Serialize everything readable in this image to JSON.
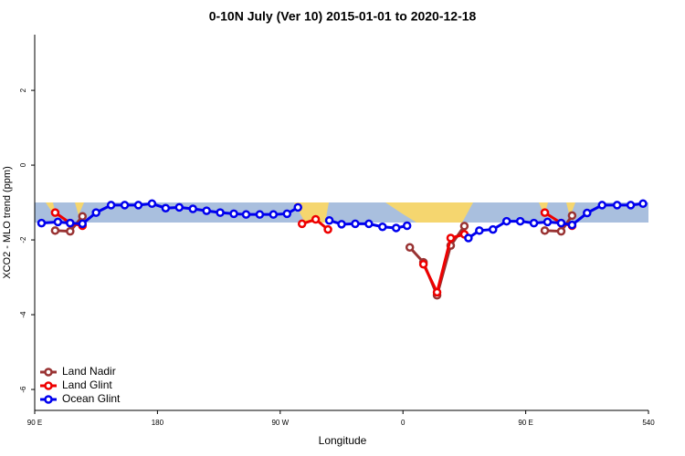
{
  "chart_data": {
    "type": "line",
    "title": "0-10N July (Ver 10)   2015-01-01 to 2020-12-18",
    "x_label": "Longitude",
    "y_label": "XCO2 - MLO trend (ppm)",
    "xlim": [
      90,
      540
    ],
    "xticks": [
      {
        "value": 90,
        "label": "90 E"
      },
      180,
      {
        "value": 270,
        "label": "90 W"
      },
      {
        "value": 360,
        "label": "0"
      },
      {
        "value": 450,
        "label": "90 E"
      },
      540
    ],
    "ylim": [
      -6.56,
      3.49
    ],
    "yticks": [
      -6,
      -4,
      -2,
      0,
      2
    ],
    "legend": "bottom-left",
    "series": [
      {
        "name": "Land Nadir",
        "color": "#993333",
        "x": [
          105,
          116,
          125,
          200,
          365,
          375,
          385,
          395,
          405,
          430,
          464,
          476,
          484
        ],
        "values": [
          -1.75,
          -1.77,
          -1.37,
          null,
          -2.2,
          -2.6,
          -3.48,
          -2.15,
          -1.63,
          null,
          -1.75,
          -1.77,
          -1.35
        ]
      },
      {
        "name": "Land Glint",
        "color": "#ee0000",
        "x": [
          105,
          116,
          125,
          200,
          286,
          296,
          305,
          340,
          375,
          385,
          395,
          405,
          430,
          464,
          476,
          484
        ],
        "values": [
          -1.27,
          -1.55,
          -1.62,
          null,
          -1.57,
          -1.45,
          -1.72,
          null,
          -2.65,
          -3.4,
          -1.95,
          -1.85,
          null,
          -1.27,
          -1.55,
          -1.62
        ]
      },
      {
        "name": "Ocean Glint",
        "color": "#0000ee",
        "x": [
          95,
          107,
          116,
          125,
          135,
          146,
          156,
          166,
          176,
          186,
          196,
          206,
          216,
          226,
          236,
          245,
          255,
          265,
          275,
          283,
          294,
          306,
          315,
          325,
          335,
          345,
          355,
          363,
          385,
          408,
          416,
          426,
          436,
          446,
          456,
          466,
          476,
          484,
          495,
          506,
          517,
          527,
          536
        ],
        "values": [
          -1.55,
          -1.52,
          -1.55,
          -1.57,
          -1.27,
          -1.07,
          -1.07,
          -1.07,
          -1.03,
          -1.15,
          -1.13,
          -1.17,
          -1.22,
          -1.27,
          -1.3,
          -1.32,
          -1.32,
          -1.32,
          -1.3,
          -1.13,
          null,
          -1.48,
          -1.58,
          -1.57,
          -1.57,
          -1.65,
          -1.68,
          -1.62,
          null,
          -1.95,
          -1.75,
          -1.72,
          -1.5,
          -1.5,
          -1.55,
          -1.52,
          -1.55,
          -1.6,
          -1.28,
          -1.07,
          -1.07,
          -1.07,
          -1.03
        ]
      }
    ]
  }
}
